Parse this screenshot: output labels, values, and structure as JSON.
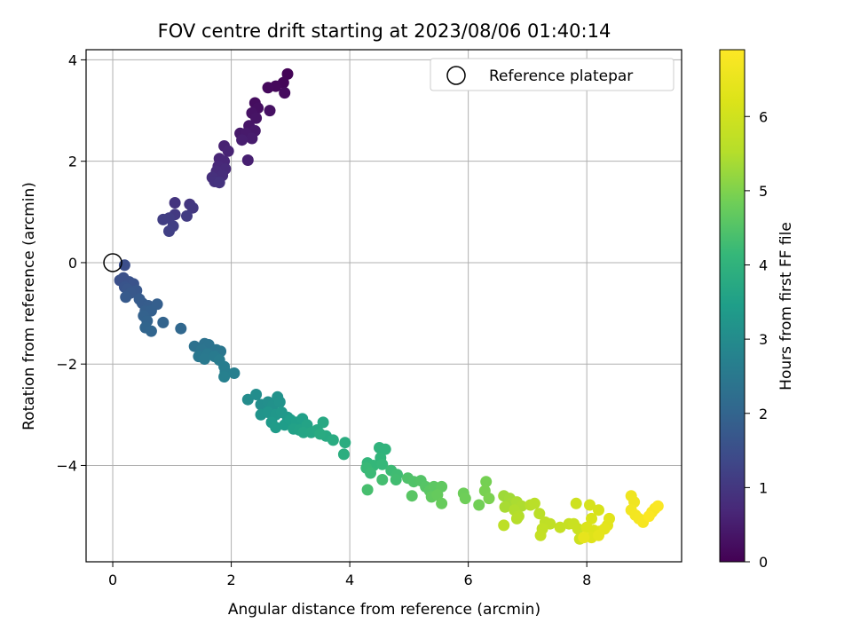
{
  "chart_data": {
    "type": "scatter",
    "title": "FOV centre drift starting at 2023/08/06 01:40:14",
    "xlabel": "Angular distance from reference (arcmin)",
    "ylabel": "Rotation from reference (arcmin)",
    "xlim": [
      -0.45,
      9.6
    ],
    "ylim": [
      -5.9,
      4.2
    ],
    "xticks": [
      0,
      2,
      4,
      6,
      8
    ],
    "yticks": [
      -4,
      -2,
      0,
      2,
      4
    ],
    "xtick_labels": [
      "0",
      "2",
      "4",
      "6",
      "8"
    ],
    "ytick_labels": [
      "−4",
      "−2",
      "0",
      "2",
      "4"
    ],
    "grid": true,
    "legend": {
      "placement": "top-right",
      "entries": [
        {
          "label": "Reference platepar",
          "marker": "open-circle"
        }
      ]
    },
    "reference_point": {
      "x": 0,
      "y": 0
    },
    "colormap": "viridis",
    "colorbar": {
      "label": "Hours from first FF file",
      "range": [
        0,
        6.9
      ],
      "ticks": [
        0,
        1,
        2,
        3,
        4,
        5,
        6
      ],
      "tick_labels": [
        "0",
        "1",
        "2",
        "3",
        "4",
        "5",
        "6"
      ]
    },
    "series": [
      {
        "points": [
          [
            2.95,
            3.72,
            0.05
          ],
          [
            2.88,
            3.55,
            0.08
          ],
          [
            2.75,
            3.48,
            0.12
          ],
          [
            2.62,
            3.45,
            0.15
          ],
          [
            2.9,
            3.35,
            0.18
          ],
          [
            2.4,
            3.15,
            0.22
          ],
          [
            2.45,
            3.05,
            0.25
          ],
          [
            2.65,
            3.0,
            0.28
          ],
          [
            2.35,
            2.95,
            0.3
          ],
          [
            2.42,
            2.85,
            0.33
          ],
          [
            2.3,
            2.7,
            0.36
          ],
          [
            2.4,
            2.6,
            0.4
          ],
          [
            2.15,
            2.55,
            0.43
          ],
          [
            2.25,
            2.55,
            0.45
          ],
          [
            2.35,
            2.45,
            0.48
          ],
          [
            2.18,
            2.42,
            0.52
          ],
          [
            2.28,
            2.02,
            0.55
          ],
          [
            1.88,
            2.3,
            0.58
          ],
          [
            1.95,
            2.2,
            0.62
          ],
          [
            1.8,
            2.05,
            0.65
          ],
          [
            1.88,
            2.0,
            0.68
          ],
          [
            1.78,
            1.9,
            0.72
          ],
          [
            1.9,
            1.85,
            0.75
          ],
          [
            1.75,
            1.8,
            0.78
          ],
          [
            1.85,
            1.72,
            0.82
          ],
          [
            1.68,
            1.68,
            0.85
          ],
          [
            1.72,
            1.6,
            0.88
          ],
          [
            1.8,
            1.58,
            0.92
          ],
          [
            1.05,
            1.18,
            0.95
          ],
          [
            1.3,
            1.15,
            0.98
          ],
          [
            1.35,
            1.08,
            1.02
          ],
          [
            1.05,
            0.95,
            1.05
          ],
          [
            1.25,
            0.92,
            1.08
          ],
          [
            0.95,
            0.88,
            1.12
          ],
          [
            0.85,
            0.85,
            1.15
          ],
          [
            1.02,
            0.72,
            1.18
          ],
          [
            0.95,
            0.62,
            1.2
          ],
          [
            0.2,
            -0.05,
            1.5
          ],
          [
            0.12,
            -0.35,
            1.52
          ],
          [
            0.18,
            -0.3,
            1.55
          ],
          [
            0.28,
            -0.38,
            1.58
          ],
          [
            0.35,
            -0.42,
            1.6
          ],
          [
            0.2,
            -0.48,
            1.63
          ],
          [
            0.25,
            -0.52,
            1.66
          ],
          [
            0.4,
            -0.55,
            1.7
          ],
          [
            0.3,
            -0.6,
            1.72
          ],
          [
            0.22,
            -0.68,
            1.75
          ],
          [
            0.45,
            -0.72,
            1.78
          ],
          [
            0.5,
            -0.8,
            1.8
          ],
          [
            0.6,
            -0.85,
            1.83
          ],
          [
            0.55,
            -0.95,
            1.86
          ],
          [
            0.75,
            -0.82,
            1.88
          ],
          [
            0.65,
            -0.95,
            1.9
          ],
          [
            0.52,
            -1.05,
            1.93
          ],
          [
            0.58,
            -1.15,
            1.95
          ],
          [
            0.85,
            -1.18,
            1.98
          ],
          [
            0.55,
            -1.28,
            2.0
          ],
          [
            0.65,
            -1.35,
            2.03
          ],
          [
            1.15,
            -1.3,
            2.06
          ],
          [
            1.38,
            -1.65,
            2.3
          ],
          [
            1.55,
            -1.6,
            2.33
          ],
          [
            1.62,
            -1.62,
            2.36
          ],
          [
            1.5,
            -1.72,
            2.39
          ],
          [
            1.75,
            -1.72,
            2.42
          ],
          [
            1.82,
            -1.75,
            2.45
          ],
          [
            1.45,
            -1.85,
            2.48
          ],
          [
            1.6,
            -1.8,
            2.5
          ],
          [
            1.55,
            -1.9,
            2.53
          ],
          [
            1.72,
            -1.85,
            2.56
          ],
          [
            1.8,
            -1.92,
            2.59
          ],
          [
            1.88,
            -2.05,
            2.62
          ],
          [
            1.9,
            -2.15,
            2.65
          ],
          [
            2.05,
            -2.18,
            2.68
          ],
          [
            1.88,
            -2.25,
            2.7
          ],
          [
            2.28,
            -2.7,
            3.0
          ],
          [
            2.42,
            -2.6,
            3.03
          ],
          [
            2.5,
            -2.8,
            3.06
          ],
          [
            2.62,
            -2.75,
            3.09
          ],
          [
            2.7,
            -2.82,
            3.12
          ],
          [
            2.78,
            -2.65,
            3.15
          ],
          [
            2.82,
            -2.75,
            3.18
          ],
          [
            2.5,
            -3.0,
            3.21
          ],
          [
            2.62,
            -2.95,
            3.24
          ],
          [
            2.75,
            -3.0,
            3.27
          ],
          [
            2.85,
            -2.95,
            3.3
          ],
          [
            2.95,
            -3.05,
            3.33
          ],
          [
            2.68,
            -3.15,
            3.36
          ],
          [
            2.75,
            -3.25,
            3.39
          ],
          [
            2.9,
            -3.2,
            3.42
          ],
          [
            3.0,
            -3.1,
            3.45
          ],
          [
            3.1,
            -3.15,
            3.48
          ],
          [
            3.2,
            -3.08,
            3.51
          ],
          [
            3.05,
            -3.28,
            3.54
          ],
          [
            3.15,
            -3.3,
            3.57
          ],
          [
            3.28,
            -3.2,
            3.6
          ],
          [
            3.22,
            -3.35,
            3.63
          ],
          [
            3.35,
            -3.35,
            3.66
          ],
          [
            3.45,
            -3.3,
            3.69
          ],
          [
            3.55,
            -3.15,
            3.72
          ],
          [
            3.6,
            -3.42,
            3.75
          ],
          [
            3.5,
            -3.38,
            3.78
          ],
          [
            3.72,
            -3.5,
            3.81
          ],
          [
            3.92,
            -3.55,
            3.84
          ],
          [
            3.9,
            -3.78,
            3.87
          ],
          [
            4.5,
            -3.65,
            4.0
          ],
          [
            4.6,
            -3.68,
            4.03
          ],
          [
            4.52,
            -3.85,
            4.06
          ],
          [
            4.3,
            -3.95,
            4.09
          ],
          [
            4.4,
            -4.0,
            4.12
          ],
          [
            4.55,
            -3.98,
            4.15
          ],
          [
            4.28,
            -4.05,
            4.18
          ],
          [
            4.35,
            -4.15,
            4.21
          ],
          [
            4.7,
            -4.1,
            4.24
          ],
          [
            4.8,
            -4.18,
            4.27
          ],
          [
            4.78,
            -4.28,
            4.3
          ],
          [
            4.55,
            -4.28,
            4.33
          ],
          [
            4.3,
            -4.48,
            4.36
          ],
          [
            4.98,
            -4.25,
            4.45
          ],
          [
            5.08,
            -4.32,
            4.48
          ],
          [
            5.2,
            -4.3,
            4.51
          ],
          [
            5.28,
            -4.42,
            4.54
          ],
          [
            5.05,
            -4.6,
            4.57
          ],
          [
            5.35,
            -4.5,
            4.6
          ],
          [
            5.42,
            -4.42,
            4.63
          ],
          [
            5.55,
            -4.42,
            4.66
          ],
          [
            5.38,
            -4.62,
            4.69
          ],
          [
            5.48,
            -4.58,
            4.72
          ],
          [
            5.55,
            -4.75,
            4.75
          ],
          [
            5.92,
            -4.55,
            4.8
          ],
          [
            5.95,
            -4.65,
            4.83
          ],
          [
            6.18,
            -4.78,
            4.86
          ],
          [
            6.3,
            -4.32,
            4.9
          ],
          [
            6.28,
            -4.5,
            4.93
          ],
          [
            6.35,
            -4.65,
            4.96
          ],
          [
            6.6,
            -4.6,
            5.3
          ],
          [
            6.7,
            -4.65,
            5.33
          ],
          [
            6.72,
            -4.75,
            5.36
          ],
          [
            6.62,
            -4.82,
            5.39
          ],
          [
            6.82,
            -4.72,
            5.42
          ],
          [
            6.9,
            -4.8,
            5.45
          ],
          [
            6.78,
            -4.88,
            5.48
          ],
          [
            6.85,
            -5.0,
            5.51
          ],
          [
            6.82,
            -5.05,
            5.54
          ],
          [
            7.05,
            -4.78,
            5.57
          ],
          [
            7.12,
            -4.75,
            5.6
          ],
          [
            7.2,
            -4.95,
            5.63
          ],
          [
            6.6,
            -5.18,
            5.66
          ],
          [
            7.3,
            -5.12,
            5.69
          ],
          [
            7.38,
            -5.15,
            5.72
          ],
          [
            7.25,
            -5.25,
            5.75
          ],
          [
            7.22,
            -5.38,
            5.78
          ],
          [
            7.55,
            -5.22,
            5.81
          ],
          [
            7.7,
            -5.15,
            5.84
          ],
          [
            7.78,
            -5.15,
            5.87
          ],
          [
            7.85,
            -5.25,
            5.9
          ],
          [
            7.88,
            -5.45,
            5.93
          ],
          [
            7.82,
            -4.75,
            5.96
          ],
          [
            8.05,
            -4.78,
            6.1
          ],
          [
            8.2,
            -4.88,
            6.13
          ],
          [
            8.08,
            -5.05,
            6.16
          ],
          [
            8.0,
            -5.22,
            6.19
          ],
          [
            8.12,
            -5.28,
            6.22
          ],
          [
            8.22,
            -5.3,
            6.25
          ],
          [
            8.08,
            -5.42,
            6.28
          ],
          [
            8.38,
            -5.05,
            6.31
          ],
          [
            8.35,
            -5.18,
            6.34
          ],
          [
            8.3,
            -5.25,
            6.37
          ],
          [
            8.2,
            -5.38,
            6.4
          ],
          [
            7.95,
            -5.42,
            6.43
          ],
          [
            8.75,
            -4.6,
            6.6
          ],
          [
            8.8,
            -4.72,
            6.63
          ],
          [
            8.75,
            -4.88,
            6.66
          ],
          [
            8.82,
            -4.98,
            6.69
          ],
          [
            8.88,
            -5.05,
            6.72
          ],
          [
            8.95,
            -5.12,
            6.75
          ],
          [
            9.1,
            -4.92,
            6.78
          ],
          [
            9.15,
            -4.85,
            6.8
          ],
          [
            9.2,
            -4.8,
            6.83
          ],
          [
            9.05,
            -5.0,
            6.85
          ]
        ]
      }
    ]
  }
}
